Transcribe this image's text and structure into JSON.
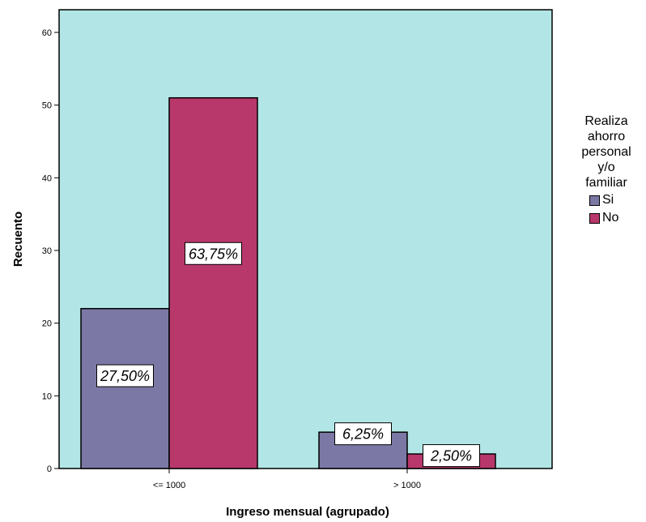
{
  "chart_data": {
    "type": "bar",
    "xlabel": "Ingreso mensual (agrupado)",
    "ylabel": "Recuento",
    "ylim": [
      0,
      60
    ],
    "yticks": [
      "0",
      "10",
      "20",
      "30",
      "40",
      "50",
      "60"
    ],
    "categories": [
      "<= 1000",
      "> 1000"
    ],
    "series": [
      {
        "name": "Si",
        "values": [
          22,
          5
        ],
        "labels": [
          "27,50%",
          "6,25%"
        ],
        "color": "#7b78a6"
      },
      {
        "name": "No",
        "values": [
          51,
          2
        ],
        "labels": [
          "63,75%",
          "2,50%"
        ],
        "color": "#b8386c"
      }
    ],
    "legend": {
      "title_lines": [
        "Realiza",
        "ahorro",
        "personal",
        "y/o",
        "familiar"
      ],
      "position": "right"
    },
    "plot_background": "#b2e6e6",
    "grid": false
  }
}
